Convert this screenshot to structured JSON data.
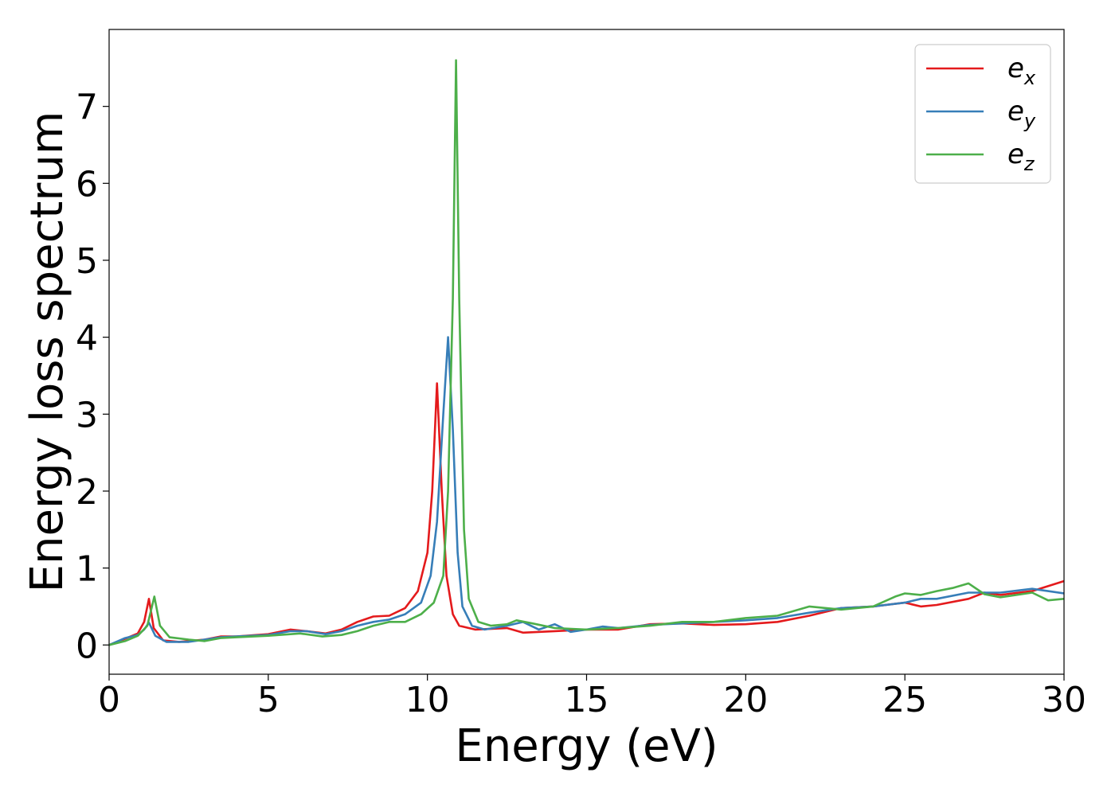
{
  "chart_data": {
    "type": "line",
    "xlabel": "Energy (eV)",
    "ylabel": "Energy loss spectrum",
    "xlim": [
      0,
      30
    ],
    "ylim": [
      -0.38,
      8.0
    ],
    "x_ticks": [
      0,
      5,
      10,
      15,
      20,
      25,
      30
    ],
    "y_ticks": [
      0,
      1,
      2,
      3,
      4,
      5,
      6,
      7
    ],
    "grid": false,
    "legend_position": "top-right",
    "series": [
      {
        "name": "e_x",
        "legend_base": "e",
        "legend_sub": "x",
        "color": "#e41a1c",
        "points": [
          [
            0,
            0
          ],
          [
            0.5,
            0.08
          ],
          [
            0.9,
            0.15
          ],
          [
            1.1,
            0.3
          ],
          [
            1.25,
            0.6
          ],
          [
            1.4,
            0.22
          ],
          [
            1.7,
            0.06
          ],
          [
            2.2,
            0.04
          ],
          [
            3,
            0.07
          ],
          [
            3.5,
            0.11
          ],
          [
            4,
            0.11
          ],
          [
            5,
            0.14
          ],
          [
            5.7,
            0.2
          ],
          [
            6.2,
            0.18
          ],
          [
            6.8,
            0.15
          ],
          [
            7.3,
            0.2
          ],
          [
            7.8,
            0.3
          ],
          [
            8.3,
            0.37
          ],
          [
            8.8,
            0.38
          ],
          [
            9.3,
            0.48
          ],
          [
            9.7,
            0.7
          ],
          [
            10.0,
            1.2
          ],
          [
            10.15,
            2.0
          ],
          [
            10.3,
            3.4
          ],
          [
            10.45,
            2.0
          ],
          [
            10.6,
            0.9
          ],
          [
            10.8,
            0.4
          ],
          [
            11.0,
            0.25
          ],
          [
            11.5,
            0.2
          ],
          [
            12.5,
            0.22
          ],
          [
            13,
            0.16
          ],
          [
            14,
            0.18
          ],
          [
            15,
            0.2
          ],
          [
            16,
            0.2
          ],
          [
            17,
            0.27
          ],
          [
            18,
            0.28
          ],
          [
            19,
            0.26
          ],
          [
            20,
            0.27
          ],
          [
            21,
            0.3
          ],
          [
            22,
            0.38
          ],
          [
            23,
            0.48
          ],
          [
            24,
            0.5
          ],
          [
            25,
            0.55
          ],
          [
            25.5,
            0.5
          ],
          [
            26,
            0.52
          ],
          [
            27,
            0.6
          ],
          [
            27.5,
            0.68
          ],
          [
            28,
            0.65
          ],
          [
            29,
            0.7
          ],
          [
            30,
            0.83
          ]
        ]
      },
      {
        "name": "e_y",
        "legend_base": "e",
        "legend_sub": "y",
        "color": "#377eb8",
        "points": [
          [
            0,
            0
          ],
          [
            0.5,
            0.09
          ],
          [
            0.9,
            0.13
          ],
          [
            1.1,
            0.2
          ],
          [
            1.25,
            0.29
          ],
          [
            1.45,
            0.12
          ],
          [
            1.8,
            0.04
          ],
          [
            2.5,
            0.04
          ],
          [
            3,
            0.07
          ],
          [
            3.5,
            0.1
          ],
          [
            4,
            0.11
          ],
          [
            5,
            0.13
          ],
          [
            5.7,
            0.18
          ],
          [
            6.2,
            0.18
          ],
          [
            6.8,
            0.14
          ],
          [
            7.3,
            0.18
          ],
          [
            7.8,
            0.25
          ],
          [
            8.3,
            0.3
          ],
          [
            8.8,
            0.33
          ],
          [
            9.3,
            0.4
          ],
          [
            9.8,
            0.55
          ],
          [
            10.1,
            0.9
          ],
          [
            10.3,
            1.6
          ],
          [
            10.5,
            3.0
          ],
          [
            10.65,
            4.0
          ],
          [
            10.8,
            2.8
          ],
          [
            10.95,
            1.2
          ],
          [
            11.1,
            0.5
          ],
          [
            11.4,
            0.25
          ],
          [
            11.8,
            0.2
          ],
          [
            12.5,
            0.25
          ],
          [
            13,
            0.3
          ],
          [
            13.5,
            0.2
          ],
          [
            14,
            0.27
          ],
          [
            14.5,
            0.17
          ],
          [
            15,
            0.2
          ],
          [
            15.5,
            0.24
          ],
          [
            16,
            0.22
          ],
          [
            17,
            0.26
          ],
          [
            18,
            0.28
          ],
          [
            19,
            0.3
          ],
          [
            20,
            0.32
          ],
          [
            21,
            0.35
          ],
          [
            22,
            0.42
          ],
          [
            23,
            0.48
          ],
          [
            24,
            0.5
          ],
          [
            25,
            0.55
          ],
          [
            25.5,
            0.6
          ],
          [
            26,
            0.6
          ],
          [
            27,
            0.68
          ],
          [
            28,
            0.68
          ],
          [
            29,
            0.73
          ],
          [
            30,
            0.67
          ]
        ]
      },
      {
        "name": "e_z",
        "legend_base": "e",
        "legend_sub": "z",
        "color": "#4daf4a",
        "points": [
          [
            0,
            0
          ],
          [
            0.5,
            0.05
          ],
          [
            0.9,
            0.12
          ],
          [
            1.2,
            0.25
          ],
          [
            1.42,
            0.63
          ],
          [
            1.6,
            0.25
          ],
          [
            1.9,
            0.1
          ],
          [
            2.5,
            0.07
          ],
          [
            3,
            0.05
          ],
          [
            3.5,
            0.09
          ],
          [
            4,
            0.1
          ],
          [
            5,
            0.12
          ],
          [
            6,
            0.15
          ],
          [
            6.7,
            0.11
          ],
          [
            7.3,
            0.13
          ],
          [
            7.8,
            0.18
          ],
          [
            8.3,
            0.25
          ],
          [
            8.8,
            0.3
          ],
          [
            9.3,
            0.3
          ],
          [
            9.8,
            0.4
          ],
          [
            10.2,
            0.55
          ],
          [
            10.5,
            0.9
          ],
          [
            10.65,
            2.0
          ],
          [
            10.8,
            4.5
          ],
          [
            10.9,
            7.6
          ],
          [
            11.0,
            4.5
          ],
          [
            11.15,
            1.5
          ],
          [
            11.3,
            0.6
          ],
          [
            11.6,
            0.3
          ],
          [
            12,
            0.25
          ],
          [
            12.5,
            0.27
          ],
          [
            12.8,
            0.32
          ],
          [
            13.3,
            0.28
          ],
          [
            14,
            0.22
          ],
          [
            15,
            0.2
          ],
          [
            16,
            0.22
          ],
          [
            17,
            0.25
          ],
          [
            18,
            0.3
          ],
          [
            19,
            0.3
          ],
          [
            20,
            0.35
          ],
          [
            21,
            0.38
          ],
          [
            22,
            0.5
          ],
          [
            23,
            0.46
          ],
          [
            24,
            0.5
          ],
          [
            24.7,
            0.63
          ],
          [
            25,
            0.67
          ],
          [
            25.5,
            0.65
          ],
          [
            26,
            0.7
          ],
          [
            26.5,
            0.74
          ],
          [
            27,
            0.8
          ],
          [
            27.5,
            0.66
          ],
          [
            28,
            0.62
          ],
          [
            29,
            0.68
          ],
          [
            29.5,
            0.58
          ],
          [
            30,
            0.6
          ]
        ]
      }
    ]
  }
}
